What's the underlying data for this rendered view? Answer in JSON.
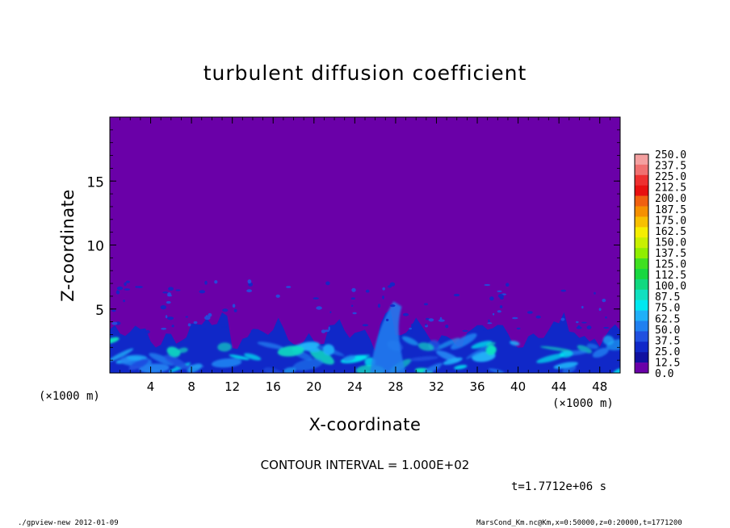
{
  "chart_data": {
    "type": "heatmap",
    "title": "turbulent diffusion coefficient",
    "xlabel": "X-coordinate",
    "ylabel": "Z-coordinate",
    "x_unit_label": "(×1000 m)",
    "x_ticks": [
      4,
      8,
      12,
      16,
      20,
      24,
      28,
      32,
      36,
      40,
      44,
      48
    ],
    "y_ticks": [
      5,
      10,
      15
    ],
    "xlim": [
      0,
      50
    ],
    "ylim": [
      0,
      20
    ],
    "colorbar": {
      "levels": [
        "250.0",
        "237.5",
        "225.0",
        "212.5",
        "200.0",
        "187.5",
        "175.0",
        "162.5",
        "150.0",
        "137.5",
        "125.0",
        "112.5",
        "100.0",
        "87.5",
        "75.0",
        "62.5",
        "50.0",
        "37.5",
        "25.0",
        "12.5",
        "0.0"
      ],
      "colors": [
        "#f4a0a0",
        "#f07070",
        "#ee3030",
        "#e81010",
        "#f06010",
        "#f59000",
        "#f7c000",
        "#f5ee00",
        "#c8f000",
        "#90ee00",
        "#40e020",
        "#18d840",
        "#10d880",
        "#10e0c0",
        "#00e8f0",
        "#20b0f8",
        "#2080f0",
        "#2050e0",
        "#1028c8",
        "#1010a0",
        "#6a00a8"
      ]
    },
    "field": {
      "background_value": 0.0,
      "background_color": "#6a00a8",
      "boundary_layer_top_km": 3.0,
      "max_plume_height_km": 7.2
    }
  },
  "contour_interval": "CONTOUR INTERVAL = 1.000E+02",
  "time_label": "t=1.7712e+06 s",
  "footer_left": "./gpview-new  2012-01-09",
  "footer_right": "MarsCond_Km.nc@Km,x=0:50000,z=0:20000,t=1771200"
}
